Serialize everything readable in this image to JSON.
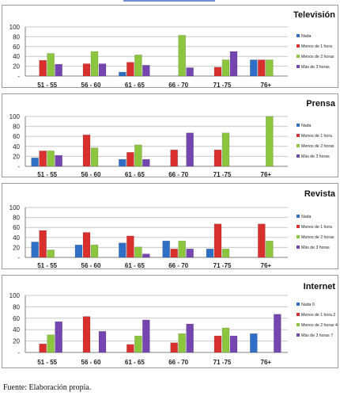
{
  "source_note": "Fuente: Elaboración propia.",
  "colors": {
    "series": [
      "#2f6fc6",
      "#d9302e",
      "#8cc63f",
      "#7646b0"
    ],
    "grid": "#c8c8c8",
    "axis": "#808080"
  },
  "chart_data": [
    {
      "type": "bar",
      "title": "Televisión",
      "categories": [
        "51 - 55",
        "56 - 60",
        "61 - 65",
        "66 - 70",
        "71 -75",
        "76+"
      ],
      "ylim": [
        0,
        100
      ],
      "yticks": [
        "100",
        "80",
        "60",
        "40",
        "20",
        "-"
      ],
      "legend": "right",
      "series": [
        {
          "name": "Nada",
          "values": [
            0,
            0,
            8,
            0,
            0,
            33
          ]
        },
        {
          "name": "Menos de 1 hora",
          "values": [
            32,
            25,
            28,
            0,
            18,
            33
          ]
        },
        {
          "name": "Menos de 2 horas",
          "values": [
            46,
            50,
            43,
            83,
            33,
            33
          ]
        },
        {
          "name": "Más de 3 horas",
          "values": [
            24,
            25,
            22,
            17,
            50,
            0
          ]
        }
      ]
    },
    {
      "type": "bar",
      "title": "Prensa",
      "categories": [
        "51 - 55",
        "56 - 60",
        "61 - 65",
        "66 - 70",
        "71 -75",
        "76+"
      ],
      "ylim": [
        0,
        100
      ],
      "yticks": [
        "100",
        "80",
        "60",
        "40",
        "20",
        "-"
      ],
      "legend": "right",
      "series": [
        {
          "name": "Nada",
          "values": [
            17,
            0,
            14,
            0,
            0,
            0
          ]
        },
        {
          "name": "Menos de 1 hora",
          "values": [
            31,
            63,
            28,
            33,
            33,
            0
          ]
        },
        {
          "name": "Menos de 2 horas",
          "values": [
            31,
            37,
            43,
            0,
            67,
            100
          ]
        },
        {
          "name": "Más de 3 horas",
          "values": [
            22,
            0,
            14,
            67,
            0,
            0
          ]
        }
      ]
    },
    {
      "type": "bar",
      "title": "Revista",
      "categories": [
        "51 - 55",
        "56 - 60",
        "61 - 65",
        "66 - 70",
        "71 -75",
        "76+"
      ],
      "ylim": [
        0,
        100
      ],
      "yticks": [
        "100",
        "80",
        "60",
        "40",
        "20",
        "-"
      ],
      "legend": "right",
      "series": [
        {
          "name": "Nada",
          "values": [
            31,
            25,
            29,
            33,
            17,
            0
          ]
        },
        {
          "name": "Menos de 1 hora",
          "values": [
            54,
            50,
            43,
            17,
            67,
            67
          ]
        },
        {
          "name": "Menos de 2 horas",
          "values": [
            15,
            25,
            21,
            33,
            17,
            33
          ]
        },
        {
          "name": "Más de 3 horas",
          "values": [
            0,
            0,
            7,
            17,
            0,
            0
          ]
        }
      ]
    },
    {
      "type": "bar",
      "title": "Internet",
      "categories": [
        "51 - 55",
        "56 - 60",
        "61 - 65",
        "66 - 70",
        "71 -75",
        "76+"
      ],
      "ylim": [
        0,
        100
      ],
      "yticks": [
        "100",
        "80",
        "60",
        "40",
        "20",
        "-"
      ],
      "legend": "right",
      "series": [
        {
          "name": "Nada 0",
          "values": [
            0,
            0,
            0,
            0,
            0,
            33
          ]
        },
        {
          "name": "Menos de 1 hora 2",
          "values": [
            15,
            63,
            14,
            17,
            29,
            0
          ]
        },
        {
          "name": "Menos de 2 horas 4",
          "values": [
            31,
            0,
            29,
            33,
            43,
            0
          ]
        },
        {
          "name": "Más de 3 horas 7",
          "values": [
            54,
            37,
            57,
            50,
            29,
            67
          ]
        }
      ]
    }
  ]
}
